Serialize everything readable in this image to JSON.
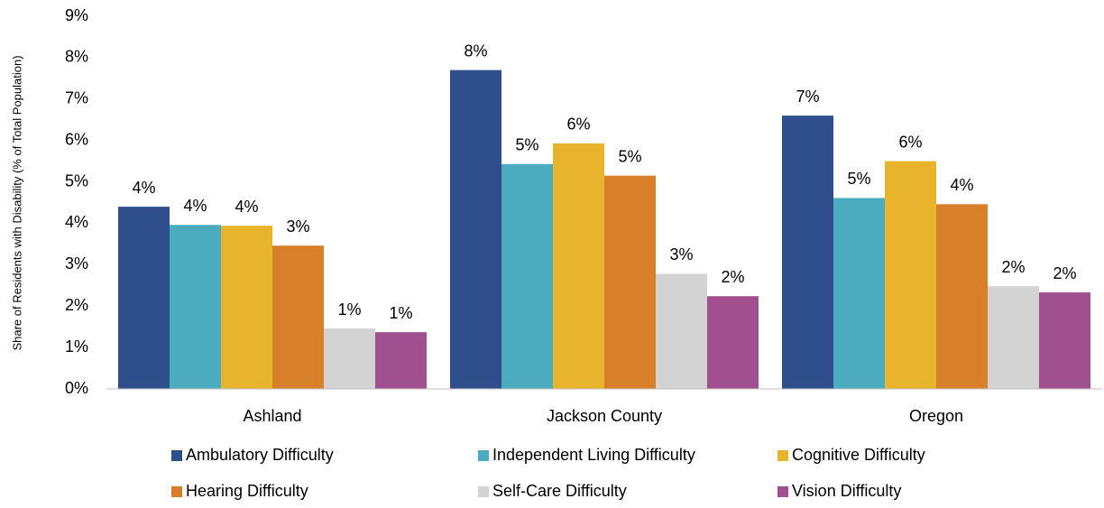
{
  "chart_data": {
    "type": "bar",
    "y_label": "Share of Residents with Disability (% of Total Population)",
    "categories": [
      "Ashland",
      "Jackson County",
      "Oregon"
    ],
    "series": [
      {
        "name": "Ambulatory Difficulty",
        "color": "#2e4f8c",
        "values": [
          4.4,
          7.7,
          6.6
        ],
        "value_labels": [
          "4%",
          "8%",
          "7%"
        ]
      },
      {
        "name": "Independent Living Difficulty",
        "color": "#4bacc0",
        "values": [
          3.96,
          5.43,
          4.61
        ],
        "value_labels": [
          "4%",
          "5%",
          "5%"
        ]
      },
      {
        "name": "Cognitive Difficulty",
        "color": "#e8b42c",
        "values": [
          3.94,
          5.93,
          5.5
        ],
        "value_labels": [
          "4%",
          "6%",
          "6%"
        ]
      },
      {
        "name": "Hearing Difficulty",
        "color": "#d87f2a",
        "values": [
          3.46,
          5.15,
          4.46
        ],
        "value_labels": [
          "3%",
          "5%",
          "4%"
        ]
      },
      {
        "name": "Self-Care Difficulty",
        "color": "#d3d3d3",
        "values": [
          1.46,
          2.78,
          2.48
        ],
        "value_labels": [
          "1%",
          "3%",
          "2%"
        ]
      },
      {
        "name": "Vision Difficulty",
        "color": "#a0508e",
        "values": [
          1.37,
          2.24,
          2.33
        ],
        "value_labels": [
          "1%",
          "2%",
          "2%"
        ]
      }
    ],
    "ylim": [
      0,
      9
    ],
    "yticks": [
      {
        "value": 0,
        "label": "0%"
      },
      {
        "value": 1,
        "label": "1%"
      },
      {
        "value": 2,
        "label": "2%"
      },
      {
        "value": 3,
        "label": "3%"
      },
      {
        "value": 4,
        "label": "4%"
      },
      {
        "value": 5,
        "label": "5%"
      },
      {
        "value": 6,
        "label": "6%"
      },
      {
        "value": 7,
        "label": "7%"
      },
      {
        "value": 8,
        "label": "8%"
      },
      {
        "value": 9,
        "label": "9%"
      }
    ],
    "grid": false,
    "legend": "bottom"
  }
}
